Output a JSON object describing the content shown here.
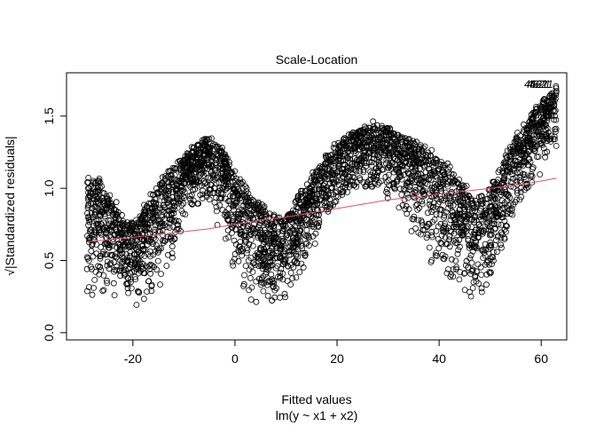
{
  "chart_data": {
    "type": "scatter",
    "title": "Scale-Location",
    "xlabel": "Fitted values",
    "sub": "lm(y ~ x1 + x2)",
    "ylabel": "√|Standardized residuals|",
    "xlim": [
      -33,
      65
    ],
    "ylim": [
      -0.05,
      1.8
    ],
    "x_ticks": [
      -20,
      0,
      20,
      40,
      60
    ],
    "y_ticks": [
      0.0,
      0.5,
      1.0,
      1.5
    ],
    "x_tick_labels": [
      "-20",
      "0",
      "20",
      "40",
      "60"
    ],
    "y_tick_labels": [
      "0.0",
      "0.5",
      "1.0",
      "1.5"
    ],
    "grid": false,
    "point_marker": "open-circle",
    "point_color": "#000000",
    "smooth_color": "#df536b",
    "x_range_of_points": [
      -29,
      63
    ],
    "envelope_description_upper": [
      [
        -29,
        1.1
      ],
      [
        -27,
        1.12
      ],
      [
        -25,
        1.0
      ],
      [
        -23,
        0.9
      ],
      [
        -21,
        0.78
      ],
      [
        -19,
        0.82
      ],
      [
        -17,
        0.95
      ],
      [
        -15,
        1.05
      ],
      [
        -13,
        1.15
      ],
      [
        -11,
        1.22
      ],
      [
        -9,
        1.28
      ],
      [
        -7,
        1.33
      ],
      [
        -5,
        1.37
      ],
      [
        -3,
        1.32
      ],
      [
        -1,
        1.2
      ],
      [
        1,
        1.1
      ],
      [
        3,
        1.0
      ],
      [
        5,
        0.92
      ],
      [
        7,
        0.85
      ],
      [
        9,
        0.82
      ],
      [
        11,
        0.88
      ],
      [
        13,
        1.0
      ],
      [
        15,
        1.1
      ],
      [
        17,
        1.22
      ],
      [
        19,
        1.3
      ],
      [
        21,
        1.35
      ],
      [
        23,
        1.4
      ],
      [
        25,
        1.44
      ],
      [
        27,
        1.47
      ],
      [
        29,
        1.45
      ],
      [
        31,
        1.42
      ],
      [
        33,
        1.38
      ],
      [
        35,
        1.35
      ],
      [
        37,
        1.32
      ],
      [
        39,
        1.28
      ],
      [
        41,
        1.22
      ],
      [
        43,
        1.15
      ],
      [
        45,
        1.05
      ],
      [
        47,
        0.95
      ],
      [
        49,
        0.98
      ],
      [
        51,
        1.1
      ],
      [
        53,
        1.25
      ],
      [
        55,
        1.38
      ],
      [
        57,
        1.48
      ],
      [
        59,
        1.58
      ],
      [
        61,
        1.66
      ],
      [
        63,
        1.72
      ]
    ],
    "envelope_description_lower": [
      [
        -29,
        0.05
      ],
      [
        -27,
        0.1
      ],
      [
        -25,
        0.12
      ],
      [
        -23,
        0.1
      ],
      [
        -21,
        0.08
      ],
      [
        -19,
        0.05
      ],
      [
        -17,
        0.02
      ],
      [
        -15,
        0.1
      ],
      [
        -13,
        0.3
      ],
      [
        -11,
        0.5
      ],
      [
        -9,
        0.7
      ],
      [
        -7,
        0.8
      ],
      [
        -5,
        0.78
      ],
      [
        -3,
        0.55
      ],
      [
        -1,
        0.35
      ],
      [
        1,
        0.18
      ],
      [
        3,
        0.08
      ],
      [
        5,
        0.05
      ],
      [
        7,
        0.04
      ],
      [
        9,
        0.05
      ],
      [
        11,
        0.1
      ],
      [
        13,
        0.25
      ],
      [
        15,
        0.45
      ],
      [
        17,
        0.6
      ],
      [
        19,
        0.72
      ],
      [
        21,
        0.82
      ],
      [
        23,
        0.9
      ],
      [
        25,
        0.92
      ],
      [
        27,
        0.9
      ],
      [
        29,
        0.85
      ],
      [
        31,
        0.8
      ],
      [
        33,
        0.7
      ],
      [
        35,
        0.55
      ],
      [
        37,
        0.4
      ],
      [
        39,
        0.28
      ],
      [
        41,
        0.18
      ],
      [
        43,
        0.1
      ],
      [
        45,
        0.06
      ],
      [
        47,
        0.04
      ],
      [
        49,
        0.1
      ],
      [
        51,
        0.3
      ],
      [
        53,
        0.5
      ],
      [
        55,
        0.7
      ],
      [
        57,
        0.85
      ],
      [
        59,
        0.95
      ],
      [
        61,
        1.05
      ],
      [
        63,
        1.12
      ]
    ],
    "n_points": 3600,
    "smooth_line": {
      "x": [
        -29,
        -20,
        -15,
        -10,
        -5,
        0,
        5,
        10,
        15,
        20,
        25,
        30,
        35,
        40,
        45,
        50,
        55,
        60,
        63
      ],
      "y": [
        0.63,
        0.66,
        0.68,
        0.7,
        0.72,
        0.75,
        0.78,
        0.8,
        0.83,
        0.86,
        0.89,
        0.92,
        0.94,
        0.96,
        0.98,
        1.0,
        1.02,
        1.05,
        1.07
      ]
    },
    "annotations": [
      {
        "label": "4621",
        "x": 59.5,
        "y": 1.72
      }
    ]
  }
}
